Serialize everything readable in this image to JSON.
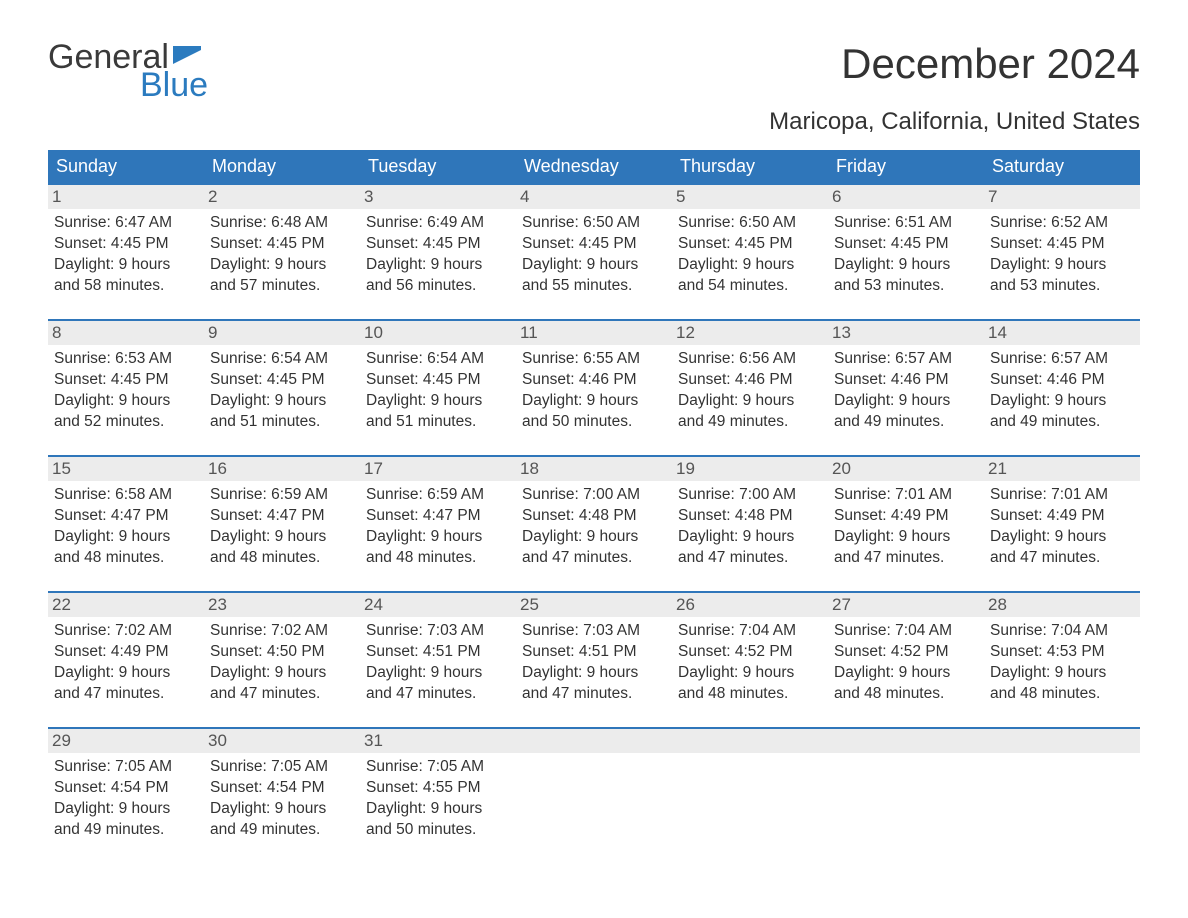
{
  "logo": {
    "text1": "General",
    "text2": "Blue",
    "flag_color": "#2b7bbf"
  },
  "title": "December 2024",
  "subtitle": "Maricopa, California, United States",
  "colors": {
    "header_bg": "#2f76ba",
    "header_text": "#ffffff",
    "daynum_bg": "#ececec",
    "daynum_text": "#555555",
    "body_text": "#333333",
    "week_border": "#2f76ba",
    "background": "#ffffff"
  },
  "day_headers": [
    "Sunday",
    "Monday",
    "Tuesday",
    "Wednesday",
    "Thursday",
    "Friday",
    "Saturday"
  ],
  "weeks": [
    [
      {
        "n": "1",
        "sunrise": "6:47 AM",
        "sunset": "4:45 PM",
        "d1": "9 hours",
        "d2": "and 58 minutes."
      },
      {
        "n": "2",
        "sunrise": "6:48 AM",
        "sunset": "4:45 PM",
        "d1": "9 hours",
        "d2": "and 57 minutes."
      },
      {
        "n": "3",
        "sunrise": "6:49 AM",
        "sunset": "4:45 PM",
        "d1": "9 hours",
        "d2": "and 56 minutes."
      },
      {
        "n": "4",
        "sunrise": "6:50 AM",
        "sunset": "4:45 PM",
        "d1": "9 hours",
        "d2": "and 55 minutes."
      },
      {
        "n": "5",
        "sunrise": "6:50 AM",
        "sunset": "4:45 PM",
        "d1": "9 hours",
        "d2": "and 54 minutes."
      },
      {
        "n": "6",
        "sunrise": "6:51 AM",
        "sunset": "4:45 PM",
        "d1": "9 hours",
        "d2": "and 53 minutes."
      },
      {
        "n": "7",
        "sunrise": "6:52 AM",
        "sunset": "4:45 PM",
        "d1": "9 hours",
        "d2": "and 53 minutes."
      }
    ],
    [
      {
        "n": "8",
        "sunrise": "6:53 AM",
        "sunset": "4:45 PM",
        "d1": "9 hours",
        "d2": "and 52 minutes."
      },
      {
        "n": "9",
        "sunrise": "6:54 AM",
        "sunset": "4:45 PM",
        "d1": "9 hours",
        "d2": "and 51 minutes."
      },
      {
        "n": "10",
        "sunrise": "6:54 AM",
        "sunset": "4:45 PM",
        "d1": "9 hours",
        "d2": "and 51 minutes."
      },
      {
        "n": "11",
        "sunrise": "6:55 AM",
        "sunset": "4:46 PM",
        "d1": "9 hours",
        "d2": "and 50 minutes."
      },
      {
        "n": "12",
        "sunrise": "6:56 AM",
        "sunset": "4:46 PM",
        "d1": "9 hours",
        "d2": "and 49 minutes."
      },
      {
        "n": "13",
        "sunrise": "6:57 AM",
        "sunset": "4:46 PM",
        "d1": "9 hours",
        "d2": "and 49 minutes."
      },
      {
        "n": "14",
        "sunrise": "6:57 AM",
        "sunset": "4:46 PM",
        "d1": "9 hours",
        "d2": "and 49 minutes."
      }
    ],
    [
      {
        "n": "15",
        "sunrise": "6:58 AM",
        "sunset": "4:47 PM",
        "d1": "9 hours",
        "d2": "and 48 minutes."
      },
      {
        "n": "16",
        "sunrise": "6:59 AM",
        "sunset": "4:47 PM",
        "d1": "9 hours",
        "d2": "and 48 minutes."
      },
      {
        "n": "17",
        "sunrise": "6:59 AM",
        "sunset": "4:47 PM",
        "d1": "9 hours",
        "d2": "and 48 minutes."
      },
      {
        "n": "18",
        "sunrise": "7:00 AM",
        "sunset": "4:48 PM",
        "d1": "9 hours",
        "d2": "and 47 minutes."
      },
      {
        "n": "19",
        "sunrise": "7:00 AM",
        "sunset": "4:48 PM",
        "d1": "9 hours",
        "d2": "and 47 minutes."
      },
      {
        "n": "20",
        "sunrise": "7:01 AM",
        "sunset": "4:49 PM",
        "d1": "9 hours",
        "d2": "and 47 minutes."
      },
      {
        "n": "21",
        "sunrise": "7:01 AM",
        "sunset": "4:49 PM",
        "d1": "9 hours",
        "d2": "and 47 minutes."
      }
    ],
    [
      {
        "n": "22",
        "sunrise": "7:02 AM",
        "sunset": "4:49 PM",
        "d1": "9 hours",
        "d2": "and 47 minutes."
      },
      {
        "n": "23",
        "sunrise": "7:02 AM",
        "sunset": "4:50 PM",
        "d1": "9 hours",
        "d2": "and 47 minutes."
      },
      {
        "n": "24",
        "sunrise": "7:03 AM",
        "sunset": "4:51 PM",
        "d1": "9 hours",
        "d2": "and 47 minutes."
      },
      {
        "n": "25",
        "sunrise": "7:03 AM",
        "sunset": "4:51 PM",
        "d1": "9 hours",
        "d2": "and 47 minutes."
      },
      {
        "n": "26",
        "sunrise": "7:04 AM",
        "sunset": "4:52 PM",
        "d1": "9 hours",
        "d2": "and 48 minutes."
      },
      {
        "n": "27",
        "sunrise": "7:04 AM",
        "sunset": "4:52 PM",
        "d1": "9 hours",
        "d2": "and 48 minutes."
      },
      {
        "n": "28",
        "sunrise": "7:04 AM",
        "sunset": "4:53 PM",
        "d1": "9 hours",
        "d2": "and 48 minutes."
      }
    ],
    [
      {
        "n": "29",
        "sunrise": "7:05 AM",
        "sunset": "4:54 PM",
        "d1": "9 hours",
        "d2": "and 49 minutes."
      },
      {
        "n": "30",
        "sunrise": "7:05 AM",
        "sunset": "4:54 PM",
        "d1": "9 hours",
        "d2": "and 49 minutes."
      },
      {
        "n": "31",
        "sunrise": "7:05 AM",
        "sunset": "4:55 PM",
        "d1": "9 hours",
        "d2": "and 50 minutes."
      },
      null,
      null,
      null,
      null
    ]
  ],
  "labels": {
    "sunrise": "Sunrise: ",
    "sunset": "Sunset: ",
    "daylight": "Daylight: "
  }
}
